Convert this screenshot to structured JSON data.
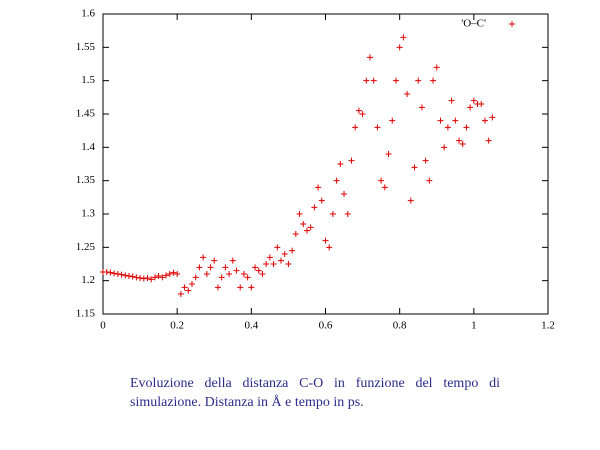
{
  "chart_data": {
    "type": "scatter",
    "series": [
      {
        "name": "'O–C'",
        "color": "#e00000",
        "x": [
          0,
          0.01,
          0.02,
          0.03,
          0.04,
          0.05,
          0.06,
          0.07,
          0.08,
          0.09,
          0.1,
          0.11,
          0.12,
          0.13,
          0.14,
          0.15,
          0.16,
          0.17,
          0.18,
          0.19,
          0.2,
          0.21,
          0.22,
          0.23,
          0.24,
          0.25,
          0.26,
          0.27,
          0.28,
          0.29,
          0.3,
          0.31,
          0.32,
          0.33,
          0.34,
          0.35,
          0.36,
          0.37,
          0.38,
          0.39,
          0.4,
          0.41,
          0.42,
          0.43,
          0.44,
          0.45,
          0.46,
          0.47,
          0.48,
          0.49,
          0.5,
          0.51,
          0.52,
          0.53,
          0.54,
          0.55,
          0.56,
          0.57,
          0.58,
          0.59,
          0.6,
          0.61,
          0.62,
          0.63,
          0.64,
          0.65,
          0.66,
          0.67,
          0.68,
          0.69,
          0.7,
          0.71,
          0.72,
          0.73,
          0.74,
          0.75,
          0.76,
          0.77,
          0.78,
          0.79,
          0.8,
          0.81,
          0.82,
          0.83,
          0.84,
          0.85,
          0.86,
          0.87,
          0.88,
          0.89,
          0.9,
          0.91,
          0.92,
          0.93,
          0.94,
          0.95,
          0.96,
          0.97,
          0.98,
          0.99,
          1,
          1.01,
          1.02,
          1.03,
          1.04,
          1.05
        ],
        "values": [
          1.213,
          1.213,
          1.212,
          1.211,
          1.21,
          1.209,
          1.208,
          1.207,
          1.206,
          1.205,
          1.204,
          1.203,
          1.204,
          1.202,
          1.205,
          1.207,
          1.205,
          1.208,
          1.21,
          1.212,
          1.21,
          1.18,
          1.19,
          1.185,
          1.195,
          1.205,
          1.22,
          1.235,
          1.21,
          1.22,
          1.23,
          1.19,
          1.205,
          1.22,
          1.21,
          1.23,
          1.215,
          1.19,
          1.21,
          1.205,
          1.19,
          1.22,
          1.215,
          1.21,
          1.225,
          1.235,
          1.225,
          1.25,
          1.23,
          1.24,
          1.225,
          1.245,
          1.27,
          1.3,
          1.285,
          1.275,
          1.28,
          1.31,
          1.34,
          1.32,
          1.26,
          1.25,
          1.3,
          1.35,
          1.375,
          1.33,
          1.3,
          1.38,
          1.43,
          1.455,
          1.45,
          1.5,
          1.535,
          1.5,
          1.43,
          1.35,
          1.34,
          1.39,
          1.44,
          1.5,
          1.55,
          1.565,
          1.48,
          1.32,
          1.37,
          1.5,
          1.46,
          1.38,
          1.35,
          1.5,
          1.52,
          1.44,
          1.4,
          1.43,
          1.47,
          1.44,
          1.41,
          1.405,
          1.43,
          1.46,
          1.47,
          1.465,
          1.465,
          1.44,
          1.41,
          1.445
        ]
      }
    ],
    "xlim": [
      0,
      1.2
    ],
    "xticks": [
      0,
      0.2,
      0.4,
      0.6,
      0.8,
      1,
      1.2
    ],
    "ylim": [
      1.15,
      1.6
    ],
    "yticks": [
      1.15,
      1.2,
      1.25,
      1.3,
      1.35,
      1.4,
      1.45,
      1.5,
      1.55,
      1.6
    ],
    "caption": "Evoluzione della distanza C-O in funzione del tempo di simulazione. Distanza in Å e tempo in ps."
  }
}
